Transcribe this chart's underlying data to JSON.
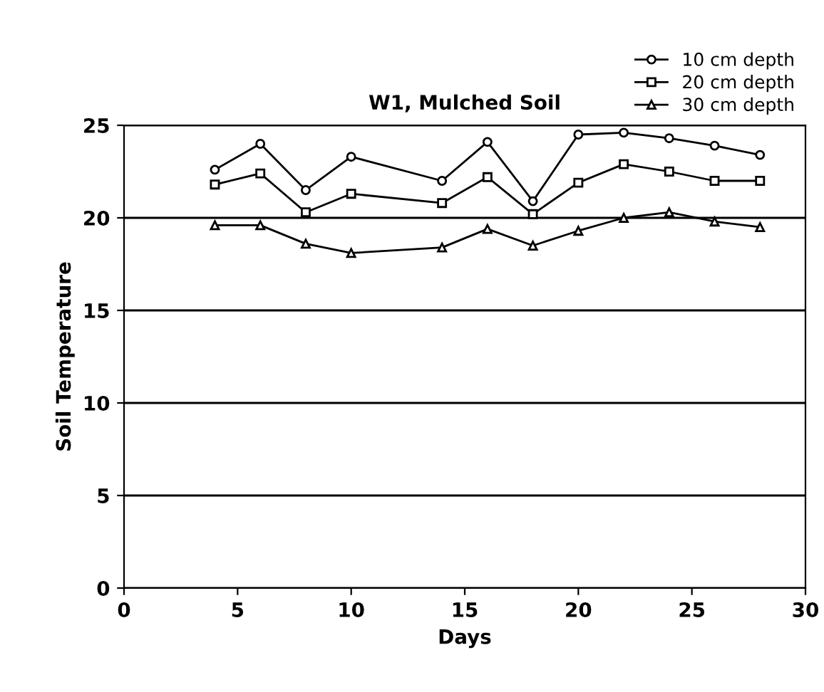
{
  "chart_data": {
    "type": "line",
    "title": "W1, Mulched Soil",
    "xlabel": "Days",
    "ylabel": "Soil Temperature",
    "x": [
      4,
      6,
      8,
      10,
      14,
      16,
      18,
      20,
      22,
      24,
      26,
      28
    ],
    "series": [
      {
        "name": "10 cm depth",
        "color": "#000000",
        "marker": "circle",
        "values": [
          22.6,
          24.0,
          21.5,
          23.3,
          22.0,
          24.1,
          20.9,
          24.5,
          24.6,
          24.3,
          23.9,
          23.4
        ]
      },
      {
        "name": "20 cm depth",
        "color": "#000000",
        "marker": "square",
        "values": [
          21.8,
          22.4,
          20.3,
          21.3,
          20.8,
          22.2,
          20.2,
          21.9,
          22.9,
          22.5,
          22.0,
          22.0
        ]
      },
      {
        "name": "30 cm depth",
        "color": "#000000",
        "marker": "triangle",
        "values": [
          19.6,
          19.6,
          18.6,
          18.1,
          18.4,
          19.4,
          18.5,
          19.3,
          20.0,
          20.3,
          19.8,
          19.5
        ]
      }
    ],
    "xlim": [
      0,
      30
    ],
    "xticks": [
      0,
      5,
      10,
      15,
      20,
      25,
      30
    ],
    "ylim": [
      0,
      25
    ],
    "yticks": [
      0,
      5,
      10,
      15,
      20,
      25
    ],
    "grid": "y",
    "legend": "top right",
    "line_style": "solid"
  }
}
